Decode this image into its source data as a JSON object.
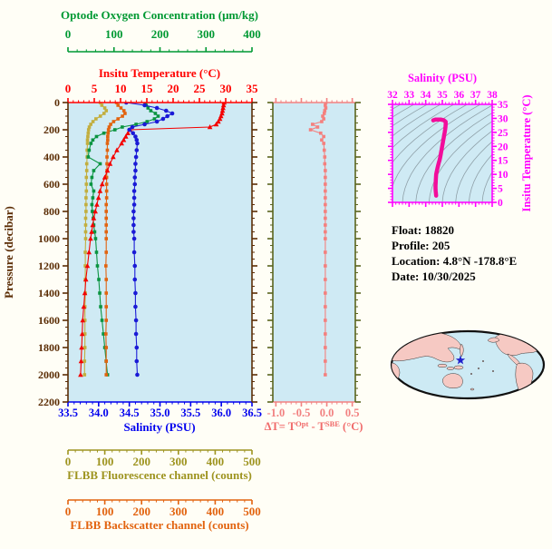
{
  "page": {
    "bg": "#fffef6",
    "plot_bg": "#CFEAF4"
  },
  "info": {
    "float_line": "Float:  18820",
    "profile_line": "Profile:  205",
    "location_line": "Location:  4.8°N  -178.8°E",
    "date_line": "Date:  10/30/2025"
  },
  "chart_data": [
    {
      "id": "main_profile",
      "type": "line",
      "ylabel": "Pressure (decibar)",
      "ylim": [
        0,
        2200
      ],
      "y_major": 200,
      "y_minor": 50,
      "y_tick_labels": [
        "0",
        "200",
        "400",
        "600",
        "800",
        "1000",
        "1200",
        "1400",
        "1600",
        "1800",
        "2000",
        "2200"
      ],
      "frame_color": "#5B2D05",
      "grid": false,
      "axes": {
        "oxygen": {
          "label": "Optode Oxygen Concentration (μm/kg)",
          "color": "#009933",
          "lim": [
            0,
            400
          ],
          "ticks": [
            "0",
            "100",
            "200",
            "300",
            "400"
          ],
          "minor": 20
        },
        "temperature": {
          "label": "Insitu Temperature (°C)",
          "color": "#FF0000",
          "lim": [
            0,
            35
          ],
          "ticks": [
            "0",
            "5",
            "10",
            "15",
            "20",
            "25",
            "30",
            "35"
          ],
          "minor": 1
        },
        "salinity": {
          "label": "Salinity (PSU)",
          "color": "#0000EE",
          "lim": [
            33.5,
            36.5
          ],
          "ticks": [
            "33.5",
            "34.0",
            "34.5",
            "35.0",
            "35.5",
            "36.0",
            "36.5"
          ],
          "minor": 0.1
        },
        "fluorescence": {
          "label": "FLBB Fluorescence channel (counts)",
          "color": "#9E9420",
          "lim": [
            0,
            500
          ],
          "ticks": [
            "0",
            "100",
            "200",
            "300",
            "400",
            "500"
          ],
          "minor": 20
        },
        "backscatter": {
          "label": "FLBB Backscatter channel (counts)",
          "color": "#E2630F",
          "lim": [
            0,
            500
          ],
          "ticks": [
            "0",
            "100",
            "200",
            "300",
            "400",
            "500"
          ],
          "minor": 20
        }
      },
      "pressure": [
        0,
        20,
        40,
        60,
        80,
        100,
        120,
        140,
        160,
        180,
        200,
        225,
        250,
        275,
        300,
        350,
        400,
        450,
        500,
        550,
        600,
        650,
        700,
        750,
        800,
        850,
        900,
        950,
        1000,
        1100,
        1200,
        1300,
        1400,
        1500,
        1600,
        1700,
        1800,
        1900,
        2000
      ],
      "series": [
        {
          "name": "fluorescence",
          "axis": "fluorescence",
          "color": "#C2AE3E",
          "marker": "square",
          "values": [
            88,
            92,
            100,
            104,
            98,
            88,
            76,
            68,
            62,
            58,
            56,
            55,
            54,
            53,
            53,
            52,
            52,
            51,
            51,
            50,
            50,
            50,
            49,
            49,
            49,
            48,
            48,
            48,
            48,
            47,
            47,
            47,
            47,
            46,
            46,
            46,
            46,
            45,
            45
          ]
        },
        {
          "name": "oxygen",
          "axis": "oxygen",
          "color": "#0A9440",
          "marker": "square",
          "values": [
            168,
            170,
            174,
            180,
            190,
            196,
            188,
            172,
            148,
            118,
            102,
            78,
            62,
            54,
            50,
            46,
            44,
            70,
            56,
            52,
            50,
            56,
            54,
            52,
            53,
            55,
            56,
            58,
            60,
            62,
            64,
            67,
            69,
            71,
            74,
            77,
            80,
            83,
            86
          ]
        },
        {
          "name": "backscatter",
          "axis": "backscatter",
          "color": "#E2630F",
          "marker": "square",
          "values": [
            132,
            136,
            144,
            152,
            155,
            148,
            136,
            124,
            116,
            112,
            110,
            109,
            108,
            108,
            107,
            107,
            106,
            106,
            106,
            105,
            105,
            105,
            105,
            104,
            104,
            104,
            104,
            104,
            104,
            104,
            103,
            104,
            104,
            104,
            104,
            103,
            104,
            104,
            104
          ]
        },
        {
          "name": "temperature",
          "axis": "temperature",
          "color": "#F40000",
          "marker": "triangle",
          "values": [
            29.7,
            29.6,
            29.5,
            29.4,
            29.3,
            29.1,
            28.9,
            28.6,
            28.2,
            27.0,
            11.8,
            11.4,
            11.0,
            10.6,
            10.2,
            9.3,
            8.6,
            8.0,
            7.5,
            7.0,
            6.5,
            6.1,
            5.8,
            5.5,
            5.2,
            4.9,
            4.7,
            4.5,
            4.3,
            4.0,
            3.7,
            3.4,
            3.2,
            3.0,
            2.8,
            2.7,
            2.6,
            2.5,
            2.4
          ]
        },
        {
          "name": "salinity",
          "axis": "salinity",
          "color": "#1A1AD6",
          "marker": "circle",
          "values": [
            34.45,
            34.75,
            34.95,
            35.1,
            35.2,
            35.12,
            35.05,
            34.95,
            34.75,
            34.55,
            34.5,
            34.56,
            34.6,
            34.62,
            34.63,
            34.62,
            34.61,
            34.6,
            34.6,
            34.59,
            34.59,
            34.58,
            34.58,
            34.58,
            34.57,
            34.57,
            34.57,
            34.57,
            34.58,
            34.58,
            34.59,
            34.59,
            34.6,
            34.6,
            34.61,
            34.61,
            34.62,
            34.62,
            34.63
          ]
        }
      ]
    },
    {
      "id": "delta_t",
      "type": "line",
      "xlim": [
        -1.06,
        0.56
      ],
      "x_ticks": [
        "-1.0",
        "-0.5",
        "0.0",
        "0.5"
      ],
      "x_minor": 0.1,
      "axis_color": "#F28282",
      "side_frame_color": "#5A641E",
      "label_parts": {
        "p1": "ΔT= T",
        "sup1": "Opt",
        "p2": " - T",
        "sup2": "SBE",
        "p3": " (°C)"
      },
      "series": {
        "name": "delta_t",
        "color": "#F4807E",
        "marker": "square",
        "pressure": [
          0,
          20,
          40,
          60,
          80,
          100,
          120,
          140,
          160,
          180,
          200,
          225,
          250,
          275,
          300,
          350,
          400,
          450,
          500,
          550,
          600,
          650,
          700,
          750,
          800,
          850,
          900,
          950,
          1000,
          1100,
          1200,
          1300,
          1400,
          1500,
          1600,
          1700,
          1800,
          1900,
          2000
        ],
        "values": [
          -0.02,
          -0.03,
          -0.02,
          -0.04,
          -0.05,
          -0.08,
          -0.06,
          -0.1,
          -0.28,
          -0.18,
          -0.32,
          -0.12,
          -0.06,
          -0.1,
          -0.06,
          -0.05,
          -0.04,
          -0.04,
          -0.03,
          -0.03,
          -0.03,
          -0.03,
          -0.03,
          -0.03,
          -0.03,
          -0.03,
          -0.03,
          -0.03,
          -0.03,
          -0.03,
          -0.03,
          -0.03,
          -0.03,
          -0.03,
          -0.03,
          -0.03,
          -0.03,
          -0.03,
          -0.03
        ]
      }
    },
    {
      "id": "ts_diagram",
      "type": "line",
      "xlabel": "Salinity (PSU)",
      "ylabel": "Insitu Temperature (°C)",
      "xlim": [
        32,
        38
      ],
      "ylim": [
        0,
        35
      ],
      "x_ticks": [
        "32",
        "33",
        "34",
        "35",
        "36",
        "37",
        "38"
      ],
      "x_minor": 0.2,
      "y_ticks": [
        "0",
        "5",
        "10",
        "15",
        "20",
        "25",
        "30",
        "35"
      ],
      "y_minor": 1,
      "axis_color": "#FF00FF",
      "line_color": "#F20D9B",
      "contour_color": "#8FA0A8",
      "salinity": [
        34.63,
        34.62,
        34.6,
        34.59,
        34.59,
        34.6,
        34.61,
        34.62,
        34.63,
        34.66,
        34.7,
        34.74,
        34.78,
        34.83,
        34.87,
        34.9,
        34.93,
        34.96,
        34.99,
        35.02,
        35.05,
        35.08,
        35.11,
        35.14,
        35.17,
        35.19,
        35.2,
        35.2,
        35.1,
        34.9,
        34.6,
        34.45
      ],
      "temperature": [
        2.4,
        3,
        4,
        5,
        6,
        7,
        8,
        9,
        10,
        11,
        12,
        13,
        14,
        15,
        16,
        17,
        18,
        19,
        20,
        21,
        22,
        23,
        24,
        25,
        26,
        27,
        28,
        28.8,
        29.3,
        29.6,
        29.6,
        29.3
      ]
    }
  ],
  "map": {
    "ocean": "#CDEAF4",
    "land": "#F6C9C3",
    "outline": "#101010",
    "star_color": "#2020CC"
  }
}
